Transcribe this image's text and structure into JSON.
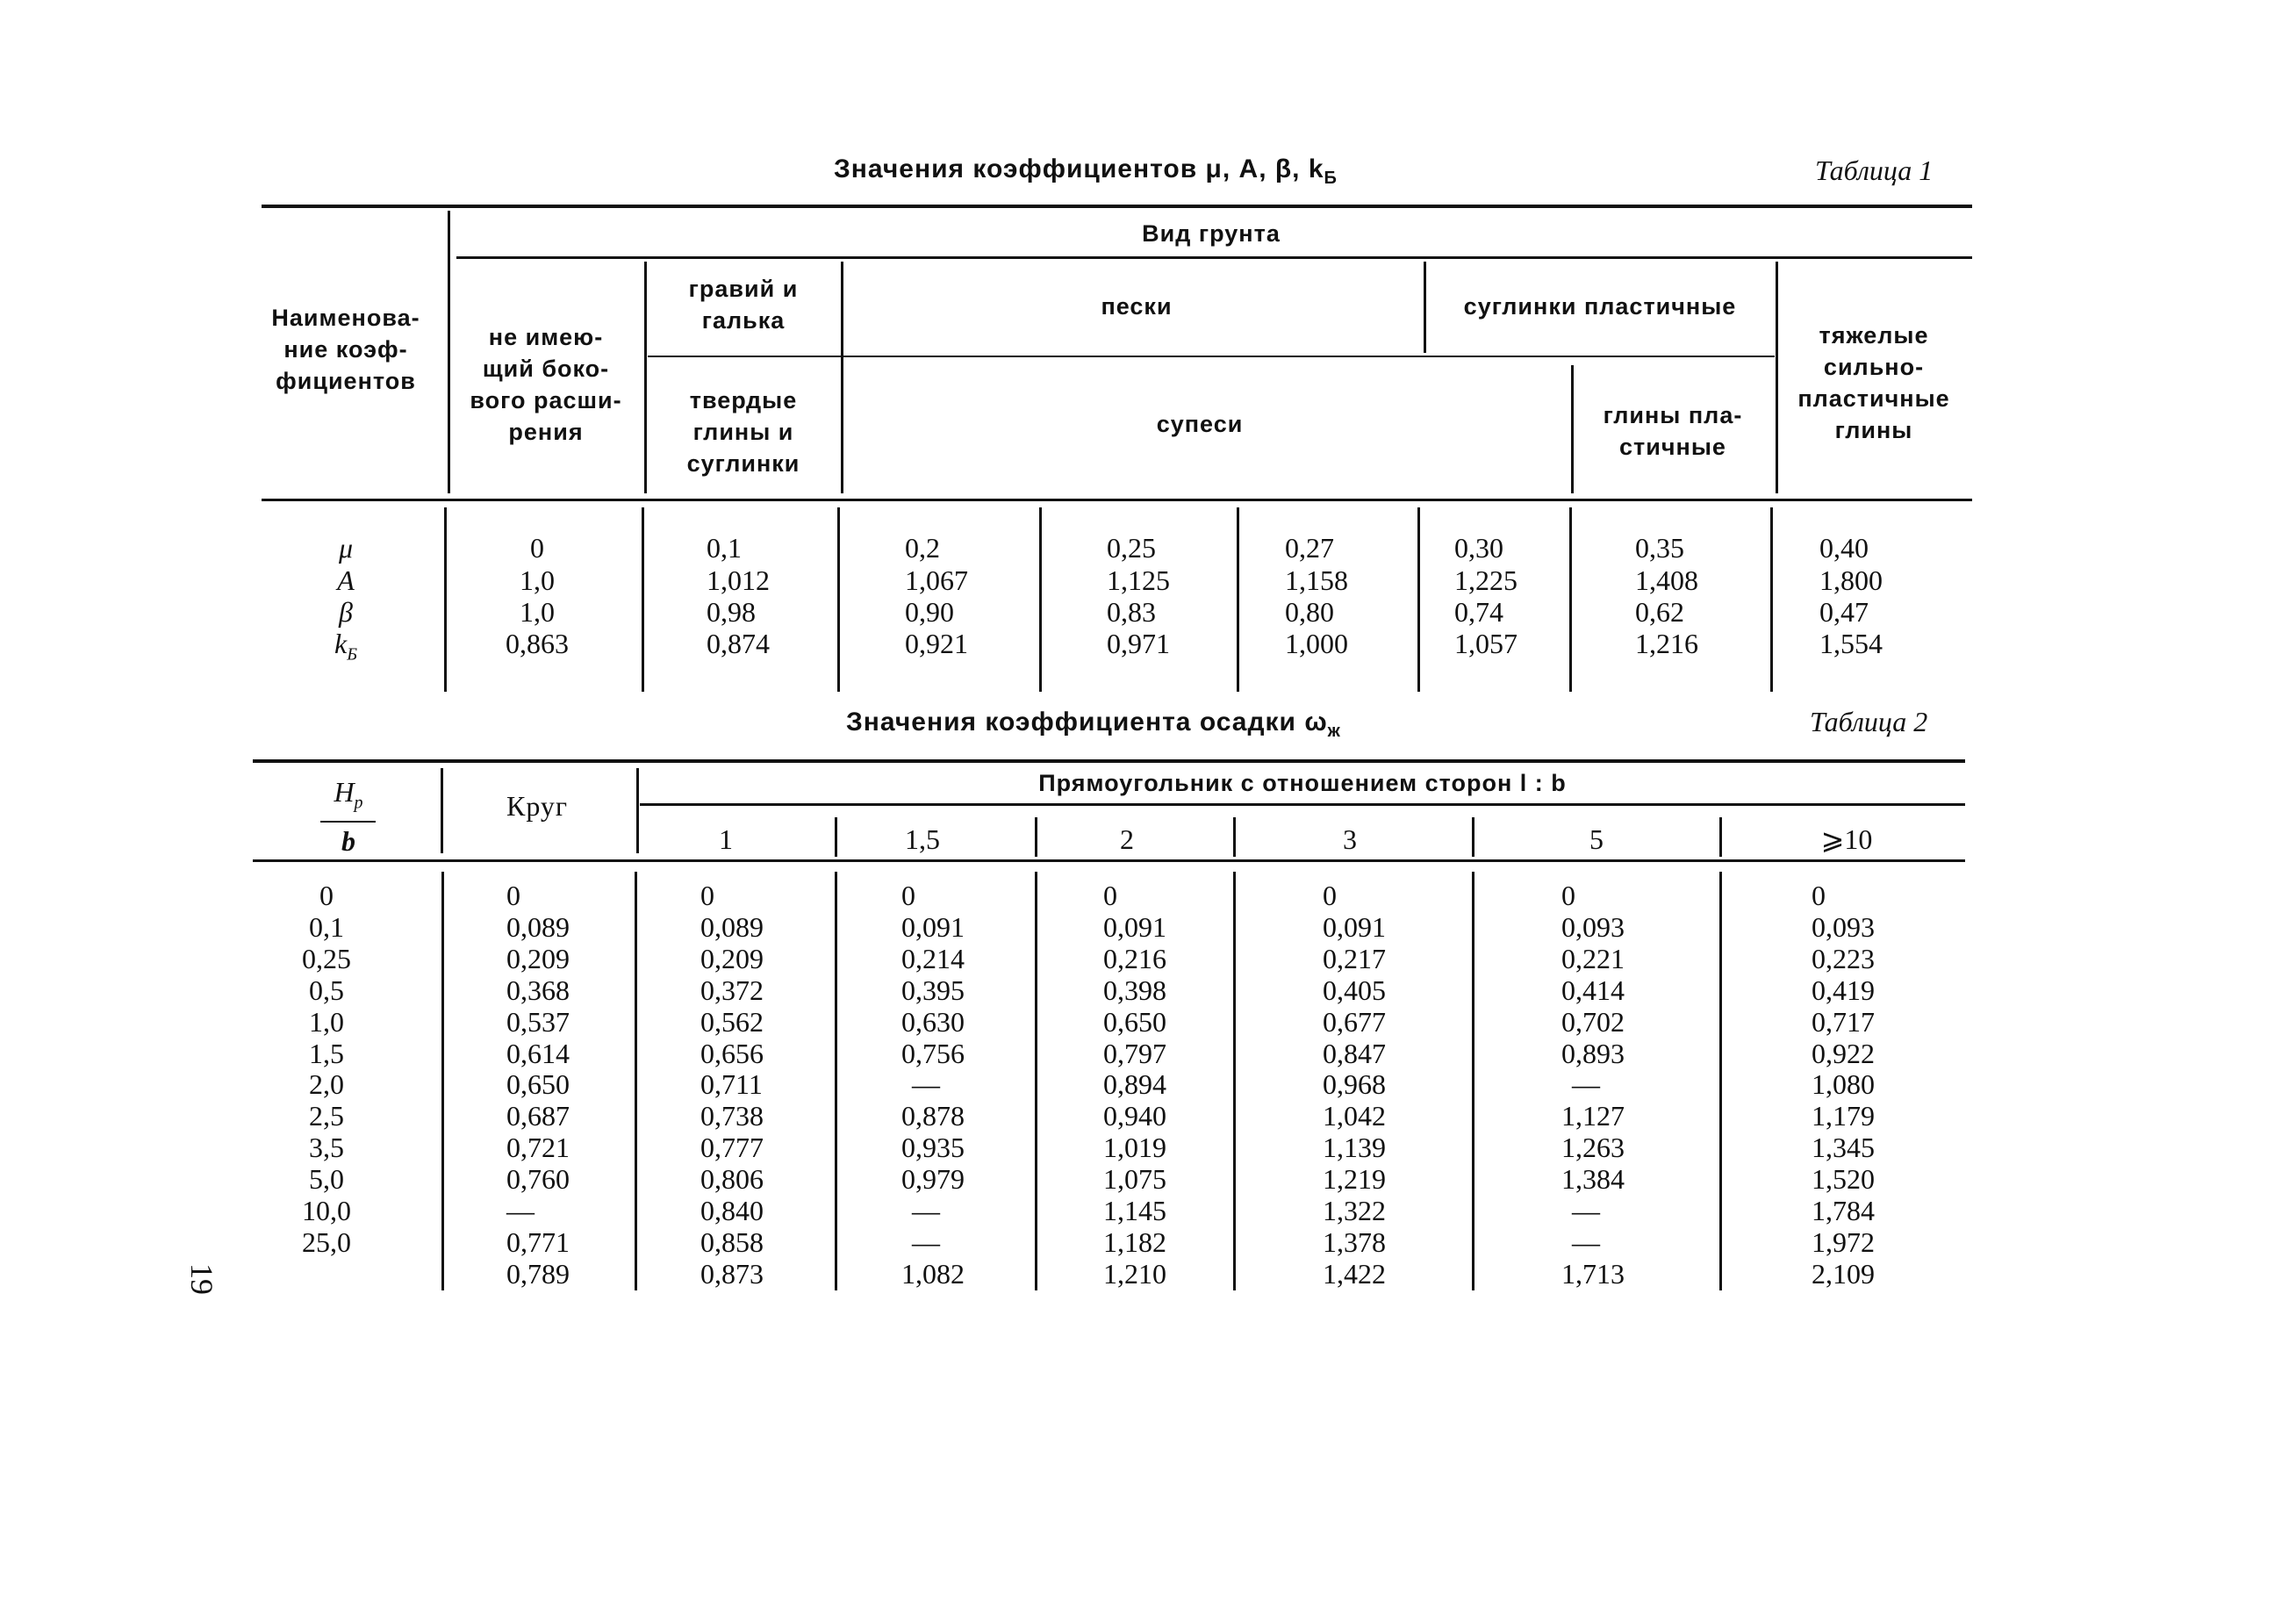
{
  "table1": {
    "title": "Значения коэффициентов μ, A, β, k",
    "title_sub": "Б",
    "label": "Таблица 1",
    "header": {
      "name_col": [
        "Наименова-",
        "ние коэф-",
        "фициентов"
      ],
      "soil_type": "Вид грунта",
      "no_lateral": [
        "не имею-",
        "щий боко-",
        "вого расши-",
        "рения"
      ],
      "gravel": [
        "гравий и",
        "галька"
      ],
      "hard_clays": [
        "твердые",
        "глины и",
        "суглинки"
      ],
      "sands": "пески",
      "loams_plastic": "суглинки пластичные",
      "sandy_loams": "супеси",
      "clays_plastic": [
        "глины пла-",
        "стичные"
      ],
      "heavy_clays": [
        "тяжелые",
        "сильно-",
        "пластичные",
        "глины"
      ]
    },
    "row_labels": [
      "μ",
      "A",
      "β",
      "k"
    ],
    "row_label_sub": "Б",
    "columns": [
      [
        "0",
        "1,0",
        "1,0",
        "0,863"
      ],
      [
        "0,1",
        "1,012",
        "0,98",
        "0,874"
      ],
      [
        "0,2",
        "1,067",
        "0,90",
        "0,921"
      ],
      [
        "0,25",
        "1,125",
        "0,83",
        "0,971"
      ],
      [
        "0,27",
        "1,158",
        "0,80",
        "1,000"
      ],
      [
        "0,30",
        "1,225",
        "0,74",
        "1,057"
      ],
      [
        "0,35",
        "1,408",
        "0,62",
        "1,216"
      ],
      [
        "0,40",
        "1,800",
        "0,47",
        "1,554"
      ]
    ]
  },
  "table2": {
    "title": "Значения коэффициента осадки ω",
    "title_sub": "ж",
    "label": "Таблица 2",
    "header": {
      "hp": "H",
      "hp_sub": "р",
      "b": "b",
      "circle": "Круг",
      "rect": "Прямоугольник с отношением сторон l : b",
      "ratios": [
        "1",
        "1,5",
        "2",
        "3",
        "5",
        "⩾10"
      ]
    },
    "hp_values": [
      "0",
      "0,1",
      "0,25",
      "0,5",
      "1,0",
      "1,5",
      "2,0",
      "2,5",
      "3,5",
      "5,0",
      "10,0",
      "25,0",
      ""
    ],
    "circle": [
      "0",
      "0,089",
      "0,209",
      "0,368",
      "0,537",
      "0,614",
      "0,650",
      "0,687",
      "0,721",
      "0,760",
      "—",
      "0,771",
      "0,789"
    ],
    "rect": [
      [
        "0",
        "0,089",
        "0,209",
        "0,372",
        "0,562",
        "0,656",
        "0,711",
        "0,738",
        "0,777",
        "0,806",
        "0,840",
        "0,858",
        "0,873"
      ],
      [
        "0",
        "0,091",
        "0,214",
        "0,395",
        "0,630",
        "0,756",
        "—",
        "0,878",
        "0,935",
        "0,979",
        "—",
        "—",
        "1,082"
      ],
      [
        "0",
        "0,091",
        "0,216",
        "0,398",
        "0,650",
        "0,797",
        "0,894",
        "0,940",
        "1,019",
        "1,075",
        "1,145",
        "1,182",
        "1,210"
      ],
      [
        "0",
        "0,091",
        "0,217",
        "0,405",
        "0,677",
        "0,847",
        "0,968",
        "1,042",
        "1,139",
        "1,219",
        "1,322",
        "1,378",
        "1,422"
      ],
      [
        "0",
        "0,093",
        "0,221",
        "0,414",
        "0,702",
        "0,893",
        "—",
        "1,127",
        "1,263",
        "1,384",
        "—",
        "—",
        "1,713"
      ],
      [
        "0",
        "0,093",
        "0,223",
        "0,419",
        "0,717",
        "0,922",
        "1,080",
        "1,179",
        "1,345",
        "1,520",
        "1,784",
        "1,972",
        "2,109"
      ]
    ]
  },
  "page_number": "19"
}
